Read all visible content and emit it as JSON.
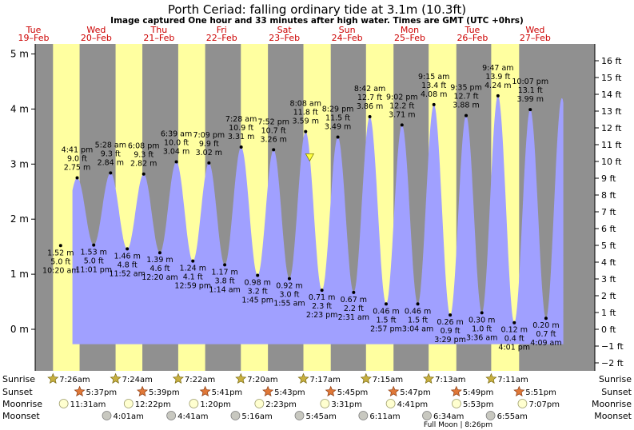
{
  "title": "Porth Ceriad: falling  ordinary tide at 3.1m (10.3ft)",
  "subtitle": "Image captured One hour and 33 minutes after high water. Times are GMT (UTC +0hrs)",
  "colors": {
    "day": "#ffffa0",
    "night": "#909090",
    "tide": "#a0a0ff",
    "weekday_text": "#cc0000",
    "current_marker": "#ffff40"
  },
  "chart_data": {
    "type": "area",
    "x_unit": "days from 00:00 Tue 19-Feb (GMT)",
    "y_unit": "m",
    "ylim_m": [
      -0.31,
      5.2
    ],
    "ylim_ft": [
      -2,
      16
    ],
    "left_ticks": [
      "0 m",
      "1 m",
      "2 m",
      "3 m",
      "4 m",
      "5 m"
    ],
    "right_ticks": [
      "−2 ft",
      "−1 ft",
      "0 ft",
      "1 ft",
      "2 ft",
      "3 ft",
      "4 ft",
      "5 ft",
      "6 ft",
      "7 ft",
      "8 ft",
      "9 ft",
      "10 ft",
      "11 ft",
      "12 ft",
      "13 ft",
      "14 ft",
      "15 ft",
      "16 ft"
    ],
    "days": [
      {
        "weekday": "Tue",
        "date": "19–Feb"
      },
      {
        "weekday": "Wed",
        "date": "20–Feb"
      },
      {
        "weekday": "Thu",
        "date": "21–Feb"
      },
      {
        "weekday": "Fri",
        "date": "22–Feb"
      },
      {
        "weekday": "Sat",
        "date": "23–Feb"
      },
      {
        "weekday": "Sun",
        "date": "24–Feb"
      },
      {
        "weekday": "Mon",
        "date": "25–Feb"
      },
      {
        "weekday": "Tue",
        "date": "26–Feb"
      },
      {
        "weekday": "Wed",
        "date": "27–Feb"
      }
    ],
    "extremes": [
      {
        "kind": "low",
        "t": 0.431,
        "m": 1.52,
        "m_label": "1.52 m",
        "ft_label": "5.0 ft",
        "time": "10:20 am"
      },
      {
        "kind": "high",
        "t": 0.695,
        "m": 2.75,
        "m_label": "2.75 m",
        "ft_label": "9.0 ft",
        "time": "4:41 pm"
      },
      {
        "kind": "low",
        "t": 0.959,
        "m": 1.53,
        "m_label": "1.53 m",
        "ft_label": "5.0 ft",
        "time": "11:01 pm"
      },
      {
        "kind": "high",
        "t": 1.228,
        "m": 2.84,
        "m_label": "2.84 m",
        "ft_label": "9.3 ft",
        "time": "5:28 am"
      },
      {
        "kind": "low",
        "t": 1.494,
        "m": 1.46,
        "m_label": "1.46 m",
        "ft_label": "4.8 ft",
        "time": "11:52 am"
      },
      {
        "kind": "high",
        "t": 1.756,
        "m": 2.82,
        "m_label": "2.82 m",
        "ft_label": "9.3 ft",
        "time": "6:08 pm"
      },
      {
        "kind": "low",
        "t": 2.014,
        "m": 1.39,
        "m_label": "1.39 m",
        "ft_label": "4.6 ft",
        "time": "12:20 am"
      },
      {
        "kind": "high",
        "t": 2.277,
        "m": 3.04,
        "m_label": "3.04 m",
        "ft_label": "10.0 ft",
        "time": "6:39 am"
      },
      {
        "kind": "low",
        "t": 2.541,
        "m": 1.24,
        "m_label": "1.24 m",
        "ft_label": "4.1 ft",
        "time": "12:59 pm"
      },
      {
        "kind": "high",
        "t": 2.797,
        "m": 3.02,
        "m_label": "3.02 m",
        "ft_label": "9.9 ft",
        "time": "7:09 pm"
      },
      {
        "kind": "low",
        "t": 3.049,
        "m": 1.17,
        "m_label": "1.17 m",
        "ft_label": "3.8 ft",
        "time": "1:14 am"
      },
      {
        "kind": "high",
        "t": 3.311,
        "m": 3.31,
        "m_label": "3.31 m",
        "ft_label": "10.9 ft",
        "time": "7:28 am"
      },
      {
        "kind": "low",
        "t": 3.573,
        "m": 0.98,
        "m_label": "0.98 m",
        "ft_label": "3.2 ft",
        "time": "1:45 pm"
      },
      {
        "kind": "high",
        "t": 3.828,
        "m": 3.26,
        "m_label": "3.26 m",
        "ft_label": "10.7 ft",
        "time": "7:52 pm"
      },
      {
        "kind": "low",
        "t": 4.08,
        "m": 0.92,
        "m_label": "0.92 m",
        "ft_label": "3.0 ft",
        "time": "1:55 am"
      },
      {
        "kind": "high",
        "t": 4.339,
        "m": 3.59,
        "m_label": "3.59 m",
        "ft_label": "11.8 ft",
        "time": "8:08 am"
      },
      {
        "kind": "low",
        "t": 4.599,
        "m": 0.71,
        "m_label": "0.71 m",
        "ft_label": "2.3 ft",
        "time": "2:23 pm"
      },
      {
        "kind": "high",
        "t": 4.853,
        "m": 3.49,
        "m_label": "3.49 m",
        "ft_label": "11.5 ft",
        "time": "8:29 pm"
      },
      {
        "kind": "low",
        "t": 5.105,
        "m": 0.67,
        "m_label": "0.67 m",
        "ft_label": "2.2 ft",
        "time": "2:31 am"
      },
      {
        "kind": "high",
        "t": 5.363,
        "m": 3.86,
        "m_label": "3.86 m",
        "ft_label": "12.7 ft",
        "time": "8:42 am"
      },
      {
        "kind": "low",
        "t": 5.623,
        "m": 0.46,
        "m_label": "0.46 m",
        "ft_label": "1.5 ft",
        "time": "2:57 pm"
      },
      {
        "kind": "high",
        "t": 5.876,
        "m": 3.71,
        "m_label": "3.71 m",
        "ft_label": "12.2 ft",
        "time": "9:02 pm"
      },
      {
        "kind": "low",
        "t": 6.128,
        "m": 0.46,
        "m_label": "0.46 m",
        "ft_label": "1.5 ft",
        "time": "3:04 am"
      },
      {
        "kind": "high",
        "t": 6.385,
        "m": 4.08,
        "m_label": "4.08 m",
        "ft_label": "13.4 ft",
        "time": "9:15 am"
      },
      {
        "kind": "low",
        "t": 6.645,
        "m": 0.26,
        "m_label": "0.26 m",
        "ft_label": "0.9 ft",
        "time": "3:29 pm"
      },
      {
        "kind": "high",
        "t": 6.899,
        "m": 3.88,
        "m_label": "3.88 m",
        "ft_label": "12.7 ft",
        "time": "9:35 pm"
      },
      {
        "kind": "low",
        "t": 7.15,
        "m": 0.3,
        "m_label": "0.30 m",
        "ft_label": "1.0 ft",
        "time": "3:36 am"
      },
      {
        "kind": "high",
        "t": 7.407,
        "m": 4.24,
        "m_label": "4.24 m",
        "ft_label": "13.9 ft",
        "time": "9:47 am"
      },
      {
        "kind": "low",
        "t": 7.667,
        "m": 0.12,
        "m_label": "0.12 m",
        "ft_label": "0.4 ft",
        "time": "4:01 pm"
      },
      {
        "kind": "high",
        "t": 7.922,
        "m": 3.99,
        "m_label": "3.99 m",
        "ft_label": "13.1 ft",
        "time": "10:07 pm"
      },
      {
        "kind": "low",
        "t": 8.173,
        "m": 0.2,
        "m_label": "0.20 m",
        "ft_label": "0.7 ft",
        "time": "4:09 am"
      }
    ],
    "daylight": [
      {
        "rise": 0.31,
        "set": 0.734
      },
      {
        "rise": 1.308,
        "set": 1.735
      },
      {
        "rise": 2.307,
        "set": 2.737
      },
      {
        "rise": 3.306,
        "set": 3.738
      },
      {
        "rise": 4.304,
        "set": 4.74
      },
      {
        "rise": 5.302,
        "set": 5.741
      },
      {
        "rise": 6.301,
        "set": 6.743
      },
      {
        "rise": 7.299,
        "set": 7.744
      }
    ],
    "current_position": {
      "t": 4.404,
      "m": 3.1
    }
  },
  "almanac": {
    "row_labels": {
      "sunrise": "Sunrise",
      "sunset": "Sunset",
      "moonrise": "Moonrise",
      "moonset": "Moonset"
    },
    "sunrise": [
      "7:26am",
      "7:24am",
      "7:22am",
      "7:20am",
      "7:17am",
      "7:15am",
      "7:13am",
      "7:11am"
    ],
    "sunset": [
      "5:37pm",
      "5:39pm",
      "5:41pm",
      "5:43pm",
      "5:45pm",
      "5:47pm",
      "5:49pm",
      "5:51pm"
    ],
    "moonrise": [
      {
        "t": 0.48,
        "label": "11:31am"
      },
      {
        "t": 1.515,
        "label": "12:22pm"
      },
      {
        "t": 2.555,
        "label": "1:20pm"
      },
      {
        "t": 3.6,
        "label": "2:23pm"
      },
      {
        "t": 4.646,
        "label": "3:31pm"
      },
      {
        "t": 5.695,
        "label": "4:41pm"
      },
      {
        "t": 6.745,
        "label": "5:53pm"
      },
      {
        "t": 7.797,
        "label": "7:07pm"
      }
    ],
    "moonset": [
      {
        "t": 1.167,
        "label": "4:01am"
      },
      {
        "t": 2.195,
        "label": "4:41am"
      },
      {
        "t": 3.219,
        "label": "5:16am"
      },
      {
        "t": 4.24,
        "label": "5:45am"
      },
      {
        "t": 5.258,
        "label": "6:11am"
      },
      {
        "t": 6.274,
        "label": "6:34am"
      },
      {
        "t": 7.289,
        "label": "6:55am"
      }
    ],
    "moon_phase": "Full Moon | 8:26pm"
  }
}
